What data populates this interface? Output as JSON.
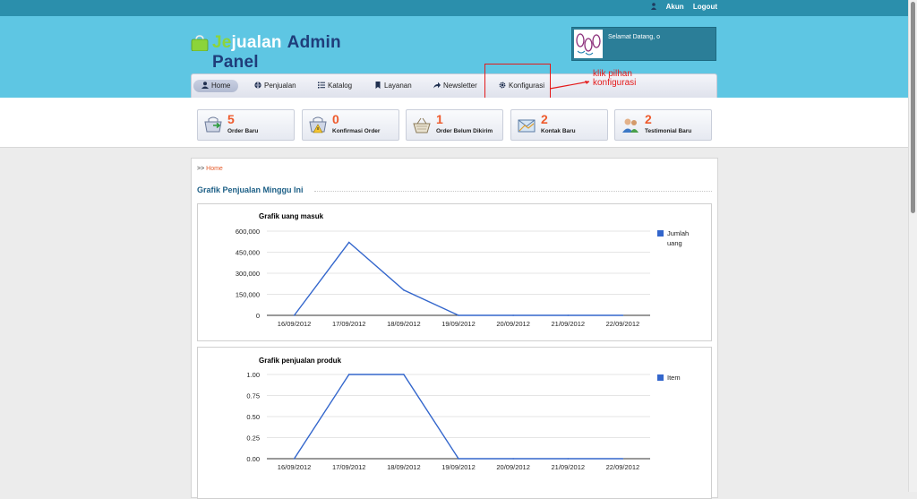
{
  "topbar": {
    "account_label": "Akun",
    "logout_label": "Logout"
  },
  "logo": {
    "part1": "Je",
    "part2": "jualan",
    "part3": "Admin Panel"
  },
  "welcome": {
    "text": "Selamat Datang, o"
  },
  "nav": {
    "items": [
      {
        "label": "Home",
        "icon": "person-icon"
      },
      {
        "label": "Penjualan",
        "icon": "globe-icon"
      },
      {
        "label": "Katalog",
        "icon": "list-icon"
      },
      {
        "label": "Layanan",
        "icon": "bookmark-icon"
      },
      {
        "label": "Newsletter",
        "icon": "share-arrow-icon"
      },
      {
        "label": "Konfigurasi",
        "icon": "gear-icon"
      }
    ]
  },
  "annotation": {
    "line1": "klik pilhan",
    "line2": "konfigurasi",
    "color": "#e41a1a"
  },
  "stats": [
    {
      "count": "5",
      "label": "Order Baru"
    },
    {
      "count": "0",
      "label": "Konfirmasi Order"
    },
    {
      "count": "1",
      "label": "Order Belum Dikirim"
    },
    {
      "count": "2",
      "label": "Kontak Baru"
    },
    {
      "count": "2",
      "label": "Testimonial Baru"
    }
  ],
  "breadcrumb": {
    "prefix": ">>",
    "home": "Home"
  },
  "section_title": "Grafik Penjualan Minggu Ini",
  "chart_data": [
    {
      "type": "line",
      "title": "Grafik uang masuk",
      "categories": [
        "16/09/2012",
        "17/09/2012",
        "18/09/2012",
        "19/09/2012",
        "20/09/2012",
        "21/09/2012",
        "22/09/2012"
      ],
      "series": [
        {
          "name": "Jumlah uang",
          "values": [
            0,
            520000,
            180000,
            0,
            0,
            0,
            0
          ]
        }
      ],
      "yticks": [
        "0",
        "150,000",
        "300,000",
        "450,000",
        "600,000"
      ],
      "ylim": [
        0,
        600000
      ],
      "legend": "right",
      "grid": true,
      "color": "#3366cc"
    },
    {
      "type": "line",
      "title": "Grafik penjualan produk",
      "categories": [
        "16/09/2012",
        "17/09/2012",
        "18/09/2012",
        "19/09/2012",
        "20/09/2012",
        "21/09/2012",
        "22/09/2012"
      ],
      "series": [
        {
          "name": "Item",
          "values": [
            0,
            1,
            1,
            0,
            0,
            0,
            0
          ]
        }
      ],
      "yticks": [
        "0.00",
        "0.25",
        "0.50",
        "0.75",
        "1.00"
      ],
      "ylim": [
        0,
        1
      ],
      "legend": "right",
      "grid": true,
      "color": "#3366cc"
    }
  ],
  "colors": {
    "header": "#5ec6e3",
    "topbar": "#2b8fac",
    "accent_orange": "#ee5a2c",
    "title_blue": "#1c5f86"
  }
}
